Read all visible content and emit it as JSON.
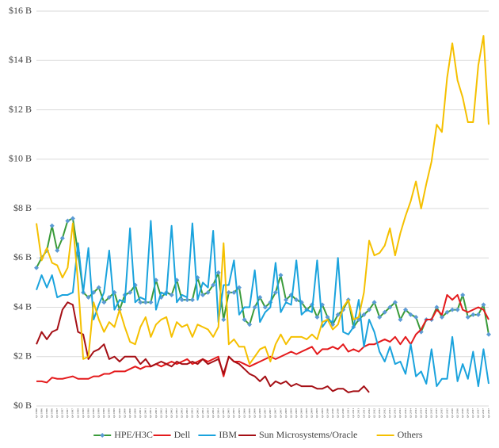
{
  "chart_data": {
    "type": "line",
    "categories": [
      "Q1 1996",
      "Q2 1996",
      "Q3 1996",
      "Q4 1996",
      "Q1 1997",
      "Q2 1997",
      "Q3 1997",
      "Q4 1997",
      "Q1 1998",
      "Q2 1998",
      "Q3 1998",
      "Q4 1998",
      "Q1 1999",
      "Q2 1999",
      "Q3 1999",
      "Q4 1999",
      "Q1 2000",
      "Q2 2000",
      "Q3 2000",
      "Q4 2000",
      "Q1 2001",
      "Q2 2001",
      "Q3 2001",
      "Q4 2001",
      "Q1 2002",
      "Q2 2002",
      "Q3 2002",
      "Q4 2002",
      "Q1 2003",
      "Q2 2003",
      "Q3 2003",
      "Q4 2003",
      "Q1 2004",
      "Q2 2004",
      "Q3 2004",
      "Q4 2004",
      "Q1 2005",
      "Q2 2005",
      "Q3 2005",
      "Q4 2005",
      "Q1 2006",
      "Q2 2006",
      "Q3 2006",
      "Q4 2006",
      "Q1 2007",
      "Q2 2007",
      "Q3 2007",
      "Q4 2007",
      "Q1 2008",
      "Q2 2008",
      "Q3 2008",
      "Q4 2008",
      "Q1 2009",
      "Q2 2009",
      "Q3 2009",
      "Q4 2009",
      "Q1 2010",
      "Q2 2010",
      "Q3 2010",
      "Q4 2010",
      "Q1 2011",
      "Q2 2011",
      "Q3 2011",
      "Q4 2011",
      "Q1 2012",
      "Q2 2012",
      "Q3 2012",
      "Q4 2012",
      "Q1 2013",
      "Q2 2013",
      "Q3 2013",
      "Q4 2013",
      "Q1 2014",
      "Q2 2014",
      "Q3 2014",
      "Q4 2014",
      "Q1 2015",
      "Q2 2015",
      "Q3 2015",
      "Q4 2015",
      "Q1 2016",
      "Q2 2016",
      "Q3 2016",
      "Q4 2016",
      "Q1 2017",
      "Q2 2017",
      "Q3 2017",
      "Q4 2017"
    ],
    "series": [
      {
        "name": "HPE/H3C",
        "color": "#3a9b3a",
        "marker_color": "#5b9bd5",
        "values": [
          5.6,
          6.0,
          6.3,
          7.3,
          6.3,
          6.8,
          7.5,
          7.6,
          6.2,
          4.6,
          4.4,
          4.6,
          4.8,
          4.2,
          4.4,
          4.6,
          3.9,
          4.5,
          4.6,
          4.9,
          4.2,
          4.2,
          4.2,
          5.1,
          4.4,
          4.6,
          4.5,
          5.1,
          4.3,
          4.3,
          4.3,
          5.2,
          4.5,
          4.6,
          4.9,
          5.4,
          3.5,
          4.6,
          4.6,
          4.8,
          3.5,
          3.3,
          4.0,
          4.4,
          4.0,
          4.2,
          4.6,
          5.3,
          4.3,
          4.5,
          4.3,
          4.2,
          3.9,
          4.1,
          3.6,
          4.1,
          3.6,
          3.3,
          3.7,
          3.9,
          4.3,
          3.2,
          3.5,
          3.7,
          3.9,
          4.2,
          3.6,
          3.8,
          4.0,
          4.2,
          3.5,
          3.9,
          3.7,
          3.6,
          3.0,
          3.5,
          3.5,
          4.0,
          3.6,
          3.8,
          3.9,
          3.9,
          4.5,
          3.6,
          3.7,
          3.7,
          4.1,
          2.9
        ]
      },
      {
        "name": "Dell",
        "color": "#e41a1c",
        "values": [
          1.0,
          1.0,
          0.95,
          1.15,
          1.1,
          1.1,
          1.15,
          1.2,
          1.1,
          1.1,
          1.1,
          1.2,
          1.2,
          1.3,
          1.3,
          1.4,
          1.4,
          1.4,
          1.5,
          1.6,
          1.5,
          1.6,
          1.6,
          1.7,
          1.6,
          1.7,
          1.8,
          1.7,
          1.8,
          1.9,
          1.7,
          1.8,
          1.9,
          1.8,
          1.9,
          2.0,
          1.2,
          2.0,
          1.8,
          1.8,
          1.7,
          1.6,
          1.7,
          1.8,
          1.9,
          2.0,
          1.9,
          2.0,
          2.1,
          2.2,
          2.1,
          2.2,
          2.3,
          2.4,
          2.1,
          2.3,
          2.3,
          2.4,
          2.3,
          2.5,
          2.2,
          2.3,
          2.2,
          2.4,
          2.5,
          2.5,
          2.6,
          2.7,
          2.6,
          2.8,
          2.5,
          2.8,
          2.5,
          2.9,
          3.1,
          3.5,
          3.5,
          3.9,
          3.7,
          4.5,
          4.3,
          4.5,
          3.9,
          3.8,
          3.9,
          4.0,
          3.9,
          3.5
        ]
      },
      {
        "name": "IBM",
        "color": "#1aa3dd",
        "values": [
          4.7,
          5.3,
          4.8,
          5.3,
          4.4,
          4.5,
          4.5,
          4.6,
          6.6,
          4.6,
          6.4,
          3.5,
          4.1,
          4.6,
          6.3,
          3.9,
          4.3,
          4.2,
          7.2,
          4.2,
          4.4,
          4.3,
          7.5,
          3.9,
          4.6,
          4.5,
          7.3,
          4.2,
          4.5,
          4.4,
          7.4,
          4.3,
          5.0,
          4.8,
          7.1,
          3.4,
          4.9,
          4.9,
          5.9,
          3.7,
          4.0,
          4.0,
          5.5,
          3.4,
          3.8,
          4.0,
          5.8,
          3.8,
          4.2,
          4.1,
          5.9,
          3.7,
          3.9,
          3.8,
          5.9,
          3.2,
          3.5,
          3.4,
          6.0,
          3.0,
          2.9,
          3.2,
          4.3,
          2.4,
          3.5,
          3.0,
          2.2,
          1.8,
          2.4,
          1.7,
          1.8,
          1.3,
          2.5,
          1.2,
          1.4,
          0.9,
          2.3,
          0.8,
          1.1,
          1.1,
          2.8,
          1.0,
          1.7,
          1.1,
          2.2,
          0.8,
          2.3,
          0.9
        ]
      },
      {
        "name": "Sun Microsystems/Oracle",
        "color": "#a50f15",
        "values": [
          2.5,
          3.0,
          2.7,
          3.0,
          3.1,
          3.9,
          4.2,
          4.1,
          3.0,
          2.9,
          1.9,
          2.2,
          2.3,
          2.5,
          1.9,
          2.0,
          1.8,
          2.0,
          2.0,
          2.0,
          1.7,
          1.9,
          1.6,
          1.7,
          1.8,
          1.7,
          1.6,
          1.8,
          1.7,
          1.7,
          1.8,
          1.7,
          1.9,
          1.7,
          1.8,
          1.9,
          1.3,
          2.0,
          1.8,
          1.7,
          1.5,
          1.3,
          1.2,
          1.0,
          1.2,
          0.8,
          1.0,
          0.9,
          1.0,
          0.8,
          0.9,
          0.8,
          0.8,
          0.8,
          0.7,
          0.7,
          0.8,
          0.6,
          0.7,
          0.7,
          0.55,
          0.6,
          0.6,
          0.8,
          0.55,
          null,
          null,
          null,
          null,
          null,
          null,
          null,
          null,
          null,
          null,
          null,
          null,
          null,
          null,
          null,
          null,
          null,
          null,
          null,
          null,
          null,
          null,
          null
        ]
      },
      {
        "name": "Others",
        "color": "#f5c000",
        "values": [
          7.4,
          5.9,
          6.4,
          5.8,
          5.7,
          5.2,
          5.6,
          7.4,
          5.0,
          1.9,
          2.0,
          4.2,
          3.5,
          3.0,
          3.4,
          3.2,
          3.9,
          3.2,
          2.6,
          2.5,
          3.2,
          3.6,
          2.8,
          3.3,
          3.5,
          3.6,
          2.8,
          3.4,
          3.2,
          3.3,
          2.8,
          3.3,
          3.2,
          3.1,
          2.8,
          3.2,
          6.6,
          2.5,
          2.7,
          2.4,
          2.4,
          1.7,
          2.0,
          2.3,
          2.4,
          1.8,
          2.5,
          2.9,
          2.5,
          2.8,
          2.8,
          2.8,
          2.7,
          2.9,
          2.7,
          3.4,
          3.5,
          3.1,
          3.3,
          4.0,
          4.3,
          3.5,
          3.6,
          4.6,
          6.7,
          6.1,
          6.2,
          6.5,
          7.2,
          6.1,
          7.0,
          7.7,
          8.3,
          9.1,
          8.0,
          9.0,
          9.9,
          11.4,
          11.1,
          13.3,
          14.7,
          13.2,
          12.5,
          11.5,
          11.5,
          13.8,
          15.0,
          11.4
        ]
      }
    ],
    "ylim": [
      0,
      16
    ],
    "yticks": [
      {
        "value": 0,
        "label": "$0 B"
      },
      {
        "value": 2,
        "label": "$2 B"
      },
      {
        "value": 4,
        "label": "$4 B"
      },
      {
        "value": 6,
        "label": "$6 B"
      },
      {
        "value": 8,
        "label": "$8 B"
      },
      {
        "value": 10,
        "label": "$10 B"
      },
      {
        "value": 12,
        "label": "$12 B"
      },
      {
        "value": 14,
        "label": "$14 B"
      },
      {
        "value": 16,
        "label": "$16 B"
      }
    ],
    "legend": "bottom"
  }
}
